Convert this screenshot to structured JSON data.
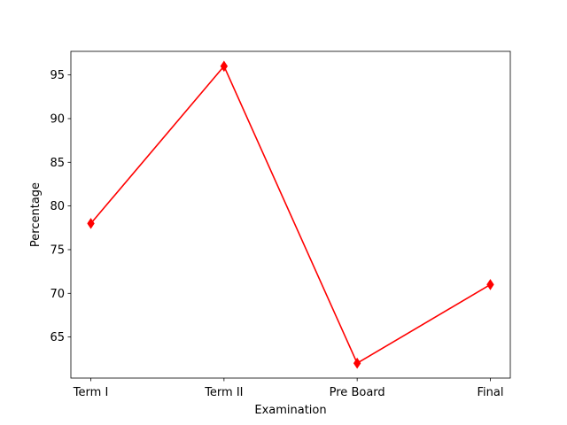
{
  "chart_data": {
    "type": "line",
    "title": "",
    "xlabel": "Examination",
    "ylabel": "Percentage",
    "categories": [
      "Term I",
      "Term II",
      "Pre Board",
      "Final"
    ],
    "series": [
      {
        "values": [
          78,
          96,
          62,
          71
        ],
        "color": "#ff0000",
        "marker": "diamond"
      }
    ],
    "ylim": [
      60.3,
      97.7
    ],
    "yticks": [
      65,
      70,
      75,
      80,
      85,
      90,
      95
    ],
    "ytick_labels": [
      "65",
      "70",
      "75",
      "80",
      "85",
      "90",
      "95"
    ],
    "grid": false,
    "legend": "none"
  }
}
